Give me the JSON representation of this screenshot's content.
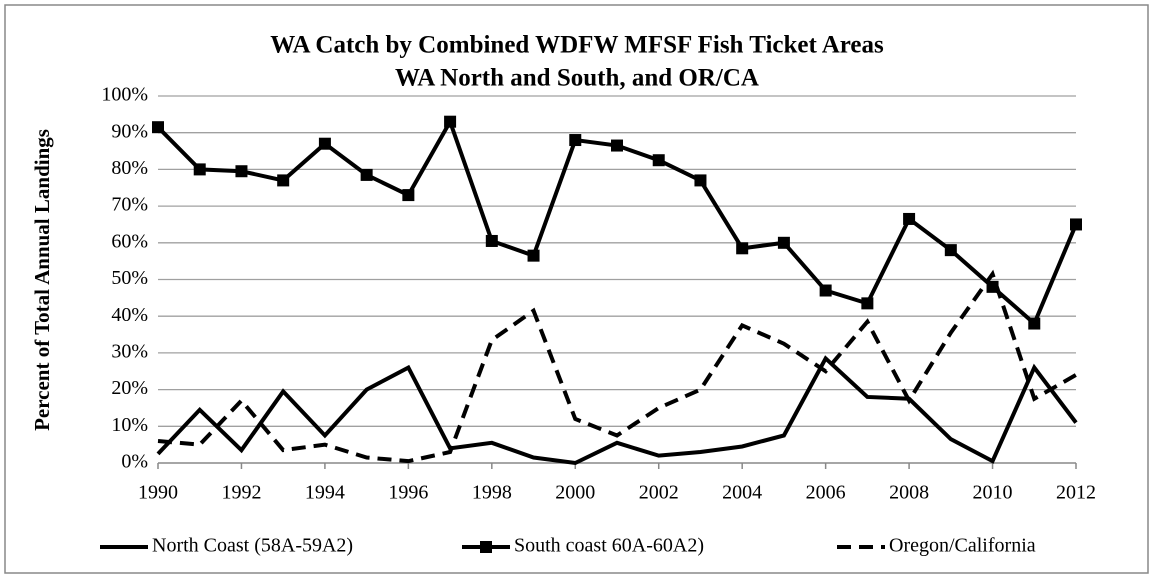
{
  "chart_data": {
    "type": "line",
    "title": "WA Catch by Combined  WDFW MFSF Fish Ticket Areas",
    "subtitle": "WA North and South, and OR/CA",
    "y_label": "Percent of Total Annual Landings",
    "x": [
      1990,
      1991,
      1992,
      1993,
      1994,
      1995,
      1996,
      1997,
      1998,
      1999,
      2000,
      2001,
      2002,
      2003,
      2004,
      2005,
      2006,
      2007,
      2008,
      2009,
      2010,
      2011,
      2012
    ],
    "xlim": [
      1990,
      2012
    ],
    "xticks": [
      1990,
      1992,
      1994,
      1996,
      1998,
      2000,
      2002,
      2004,
      2006,
      2008,
      2010,
      2012
    ],
    "ylim": [
      0,
      100
    ],
    "yticks": [
      {
        "value": 0,
        "label": "0%"
      },
      {
        "value": 10,
        "label": "10%"
      },
      {
        "value": 20,
        "label": "20%"
      },
      {
        "value": 30,
        "label": "30%"
      },
      {
        "value": 40,
        "label": "40%"
      },
      {
        "value": 50,
        "label": "50%"
      },
      {
        "value": 60,
        "label": "60%"
      },
      {
        "value": 70,
        "label": "70%"
      },
      {
        "value": 80,
        "label": "80%"
      },
      {
        "value": 90,
        "label": "90%"
      },
      {
        "value": 100,
        "label": "100%"
      }
    ],
    "grid": true,
    "legend": "bottom",
    "series": [
      {
        "name": "North Coast (58A-59A2)",
        "color": "#000000",
        "linestyle": "solid",
        "marker": "none",
        "values": [
          2.5,
          14.5,
          3.5,
          19.5,
          7.5,
          20,
          26,
          4,
          5.5,
          1.5,
          0,
          5.5,
          2,
          3,
          4.5,
          7.5,
          28.5,
          18,
          17.5,
          6.5,
          0.5,
          26,
          11
        ]
      },
      {
        "name": "South coast 60A-60A2)",
        "color": "#000000",
        "linestyle": "solid",
        "marker": "square",
        "values": [
          91.5,
          80,
          79.5,
          77,
          87,
          78.5,
          73,
          93,
          60.5,
          56.5,
          88,
          86.5,
          82.5,
          77,
          58.5,
          60,
          47,
          43.5,
          66.5,
          58,
          48,
          38,
          65
        ]
      },
      {
        "name": "Oregon/California",
        "color": "#000000",
        "linestyle": "dashed",
        "marker": "none",
        "values": [
          6,
          5,
          17,
          3.5,
          5,
          1.5,
          0.5,
          3,
          33.5,
          41.5,
          12,
          7.5,
          15,
          20,
          37.5,
          32.5,
          25,
          38.5,
          17,
          35.5,
          51.5,
          17.5,
          24
        ]
      }
    ]
  }
}
